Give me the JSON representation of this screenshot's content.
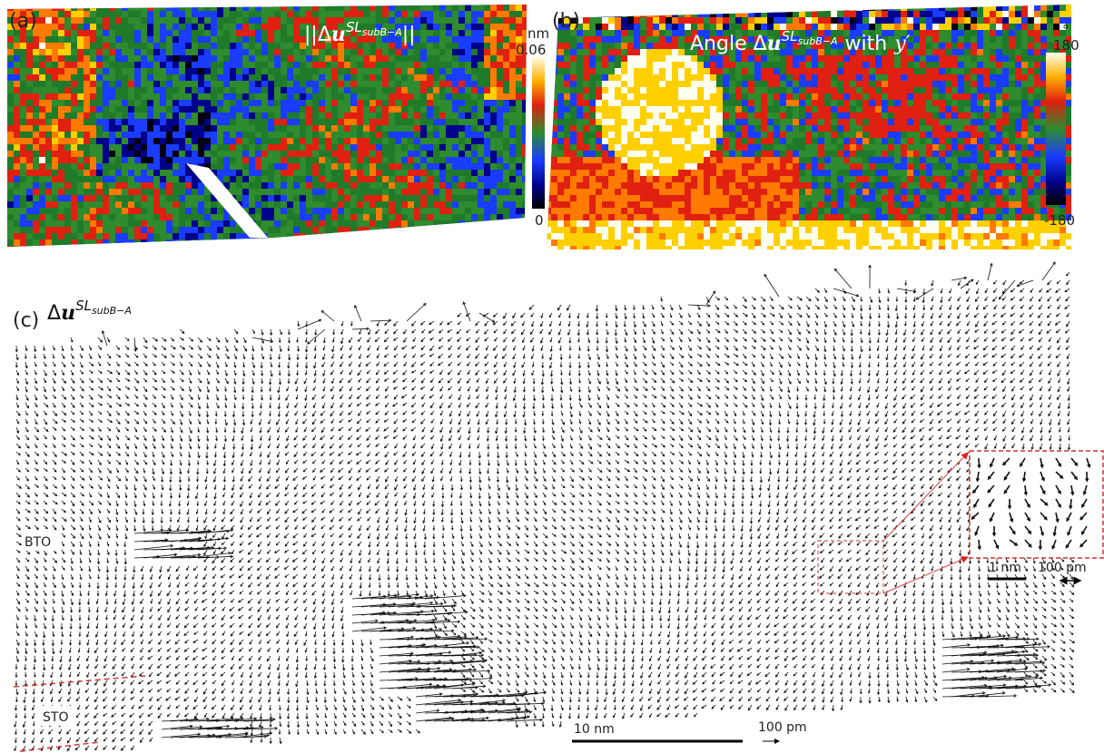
{
  "panels": {
    "a": {
      "label": "(a)",
      "title": {
        "prefix": "||Δ",
        "vector": "u",
        "superscript": "SL",
        "subscript": "subB−A",
        "suffix": "||"
      },
      "colorbar": {
        "unit": "nm",
        "max": "0.06",
        "min": "0"
      }
    },
    "b": {
      "label": "(b)",
      "title": {
        "prefix": "Angle Δ",
        "vector": "u",
        "superscript": "SL",
        "subscript": "subB−A",
        "suffix": "with",
        "variable": "y′"
      },
      "colorbar": {
        "unit": "°",
        "max": "180",
        "min": "-180"
      }
    },
    "c": {
      "label": "(c)",
      "title": {
        "prefix": "Δ",
        "vector": "u",
        "superscript": "SL",
        "subscript": "subB−A"
      },
      "regions": [
        "BTO",
        "STO"
      ],
      "scale_bars": [
        "10 nm",
        "100 pm"
      ],
      "inset_scale_bars": [
        "1 nm",
        "100 pm"
      ]
    }
  }
}
